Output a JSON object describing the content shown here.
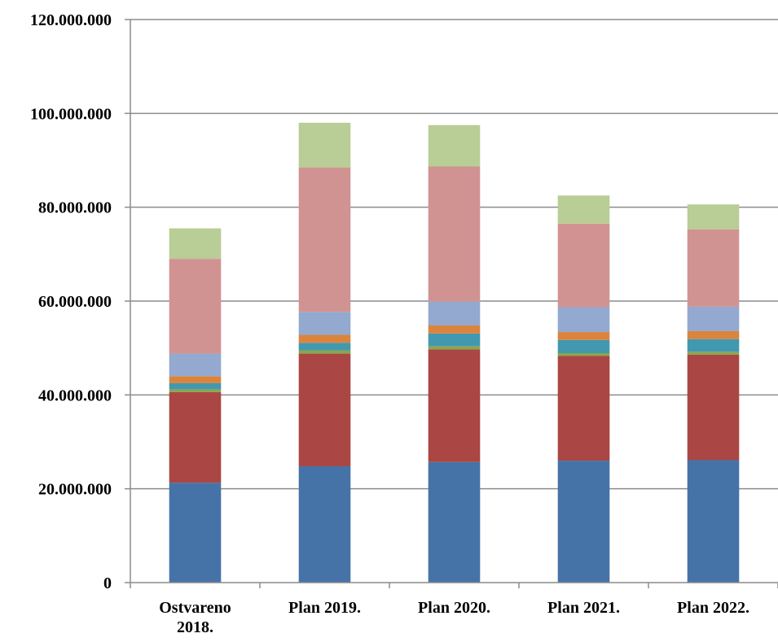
{
  "chart_data": {
    "type": "bar",
    "stacked": true,
    "categories": [
      "Ostvareno 2018.",
      "Plan 2019.",
      "Plan 2020.",
      "Plan 2021.",
      "Plan 2022."
    ],
    "category_lines": [
      [
        "Ostvareno",
        "2018."
      ],
      [
        "Plan 2019."
      ],
      [
        "Plan 2020."
      ],
      [
        "Plan 2021."
      ],
      [
        "Plan 2022."
      ]
    ],
    "ylim": [
      0,
      120000000
    ],
    "yticks": [
      0,
      20000000,
      40000000,
      60000000,
      80000000,
      100000000,
      120000000
    ],
    "ytick_labels": [
      "0",
      "20.000.000",
      "40.000.000",
      "60.000.000",
      "80.000.000",
      "100.000.000",
      "120.000.000"
    ],
    "grid": true,
    "title": "",
    "xlabel": "",
    "ylabel": "",
    "series": [
      {
        "color": "#4673A7",
        "values": [
          21300000,
          24800000,
          25700000,
          26000000,
          26100000
        ]
      },
      {
        "color": "#AA4643",
        "values": [
          19300000,
          24000000,
          24000000,
          22300000,
          22500000
        ]
      },
      {
        "color": "#89A54E",
        "values": [
          600000,
          700000,
          700000,
          600000,
          600000
        ]
      },
      {
        "color": "#4198AF",
        "values": [
          1300000,
          1600000,
          2700000,
          2800000,
          2700000
        ]
      },
      {
        "color": "#DB843D",
        "values": [
          1500000,
          1700000,
          1700000,
          1700000,
          1700000
        ]
      },
      {
        "color": "#93A9CF",
        "values": [
          4800000,
          4900000,
          5100000,
          5300000,
          5200000
        ]
      },
      {
        "color": "#D19392",
        "values": [
          20200000,
          30800000,
          28800000,
          17800000,
          16500000
        ]
      },
      {
        "color": "#B9CD96",
        "values": [
          6500000,
          9500000,
          8800000,
          6000000,
          5300000
        ]
      }
    ]
  }
}
